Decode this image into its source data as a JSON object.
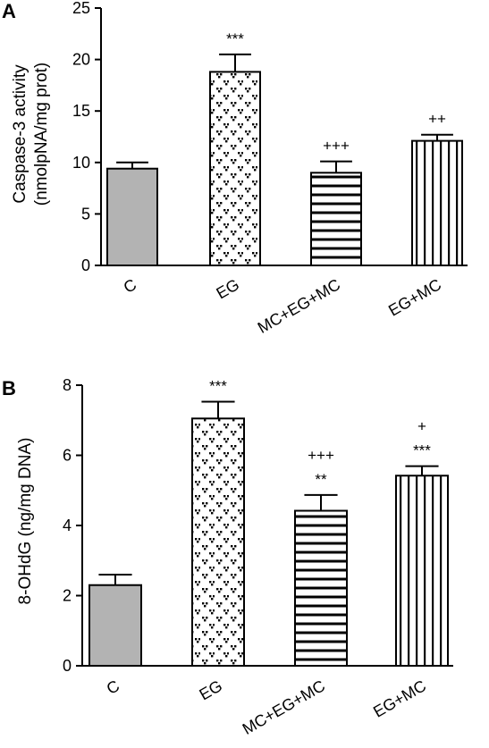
{
  "chart_data": [
    {
      "type": "bar",
      "panel": "A",
      "ylabel_lines": [
        "Caspase-3 activity",
        "(nmolpNA/mg prot)"
      ],
      "categories": [
        "C",
        "EG",
        "MC+EG+MC",
        "EG+MC"
      ],
      "values": [
        9.4,
        18.8,
        9.0,
        12.1
      ],
      "errors": [
        0.6,
        1.7,
        1.1,
        0.6
      ],
      "significance": [
        [],
        [
          "***"
        ],
        [
          "+++"
        ],
        [
          "++"
        ]
      ],
      "ylim": [
        0,
        25
      ],
      "yticks": [
        0,
        5,
        10,
        15,
        20,
        25
      ],
      "fills": [
        "gray",
        "dots",
        "hlines",
        "vlines"
      ]
    },
    {
      "type": "bar",
      "panel": "B",
      "ylabel_lines": [
        "8-OHdG (ng/mg DNA)"
      ],
      "categories": [
        "C",
        "EG",
        "MC+EG+MC",
        "EG+MC"
      ],
      "values": [
        2.3,
        7.05,
        4.42,
        5.42
      ],
      "errors": [
        0.3,
        0.48,
        0.45,
        0.27
      ],
      "significance": [
        [],
        [
          "***"
        ],
        [
          "+++",
          "**"
        ],
        [
          "+",
          "***"
        ]
      ],
      "ylim": [
        0,
        8
      ],
      "yticks": [
        0,
        2,
        4,
        6,
        8
      ],
      "fills": [
        "gray",
        "dots",
        "hlines",
        "vlines"
      ]
    }
  ],
  "colors": {
    "control_fill": "#b3b3b3",
    "stroke": "#000000"
  }
}
